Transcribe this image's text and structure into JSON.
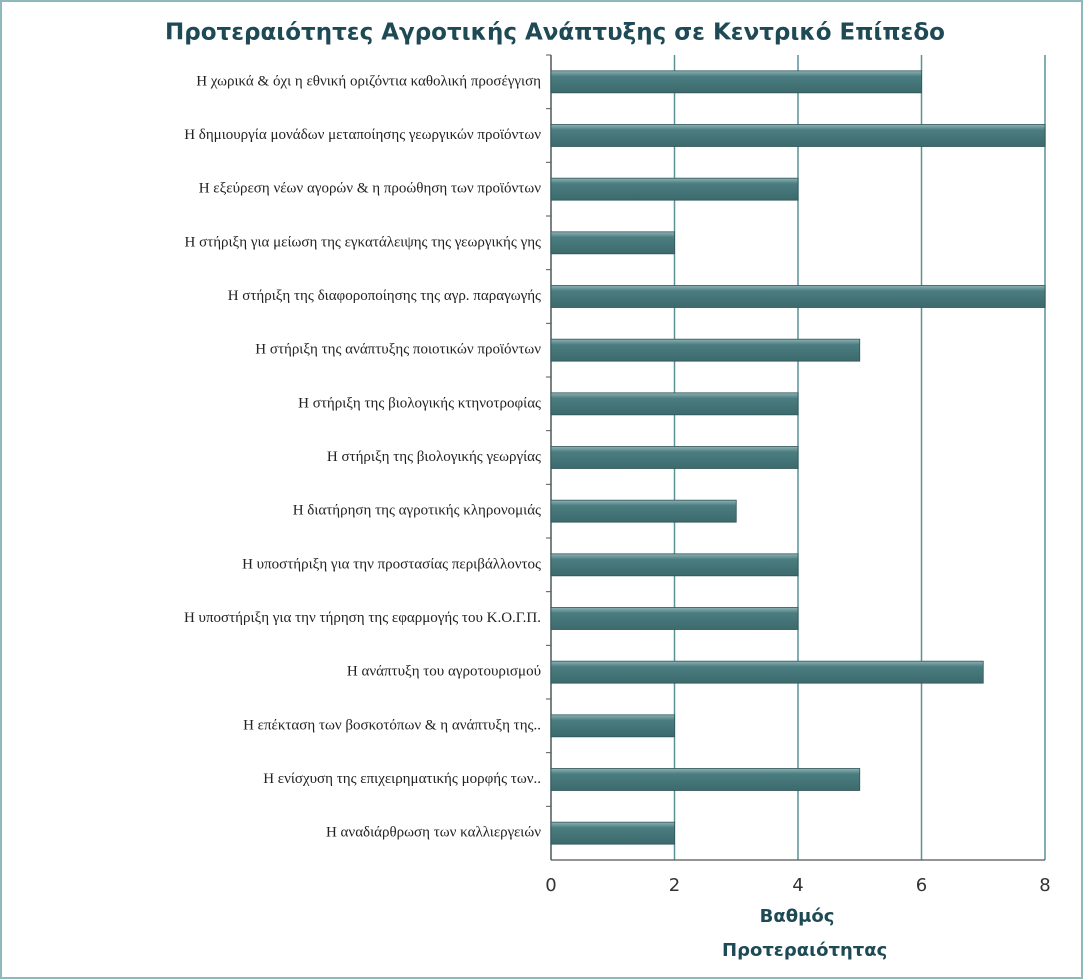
{
  "chart_data": {
    "type": "bar",
    "orientation": "horizontal",
    "title": "Προτεραιότητες Αγροτικής Ανάπτυξης σε Κεντρικό Επίπεδο",
    "x_label": "Βαθμός Προτεραιότητας",
    "categories": [
      "Η χωρικά & όχι η εθνική οριζόντια καθολική προσέγγιση",
      "Η δημιουργία μονάδων μεταποίησης γεωργικών προϊόντων",
      "Η εξεύρεση νέων αγορών & η προώθηση των προϊόντων",
      "Η στήριξη για μείωση της εγκατάλειψης της γεωργικής γης",
      "Η στήριξη της διαφοροποίησης της αγρ. παραγωγής",
      "Η στήριξη της ανάπτυξης ποιοτικών προϊόντων",
      "Η στήριξη της βιολογικής κτηνοτροφίας",
      "Η στήριξη της βιολογικής γεωργίας",
      "Η διατήρηση της αγροτικής κληρονομιάς",
      "Η υποστήριξη για την προστασίας περιβάλλοντος",
      "Η υποστήριξη για την τήρηση της εφαρμογής του Κ.Ο.Γ.Π.",
      "Η ανάπτυξη του αγροτουρισμού",
      "Η επέκταση των βοσκοτόπων & η ανάπτυξη της..",
      "Η ενίσχυση της επιχειρηματικής μορφής των..",
      "Η αναδιάρθρωση των καλλιεργειών"
    ],
    "values": [
      6,
      8,
      4,
      2,
      8,
      5,
      4,
      4,
      3,
      4,
      4,
      7,
      2,
      5,
      2
    ],
    "color": "#4b7d80",
    "xlim": [
      0,
      8
    ],
    "xticks": [
      0,
      2,
      4,
      6,
      8
    ],
    "grid": true
  }
}
